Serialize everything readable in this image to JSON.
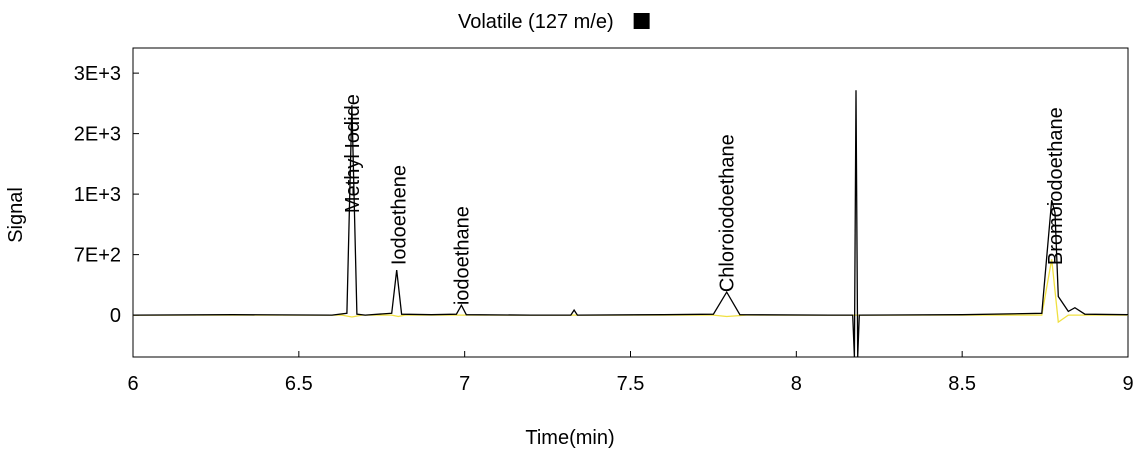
{
  "chart_data": {
    "type": "line",
    "xlabel": "Time(min)",
    "ylabel": "Signal",
    "xlim": [
      6,
      9
    ],
    "xticks": [
      6,
      6.5,
      7,
      7.5,
      8,
      8.5,
      9
    ],
    "ylim": [
      -450,
      2870
    ],
    "yticks": [
      0,
      {
        "value": 650,
        "label": "7E+2"
      },
      {
        "value": 1300,
        "label": "1E+3"
      },
      {
        "value": 1950,
        "label": "2E+3"
      },
      {
        "value": 2600,
        "label": "3E+3"
      }
    ],
    "series": [
      {
        "name": "Volatile (127 m/e)",
        "color": "#000000",
        "x": [
          6.0,
          6.3,
          6.6,
          6.645,
          6.66,
          6.675,
          6.7,
          6.78,
          6.795,
          6.81,
          6.9,
          6.975,
          6.99,
          7.005,
          7.2,
          7.32,
          7.33,
          7.34,
          7.6,
          7.75,
          7.79,
          7.83,
          8.1,
          8.17,
          8.175,
          8.18,
          8.185,
          8.19,
          8.5,
          8.74,
          8.77,
          8.78,
          8.79,
          8.82,
          8.84,
          8.87,
          9.0
        ],
        "values": [
          0,
          5,
          0,
          20,
          2256,
          10,
          0,
          20,
          484,
          10,
          5,
          10,
          107,
          5,
          0,
          0,
          54,
          0,
          5,
          10,
          247,
          5,
          0,
          0,
          -450,
          2417,
          -450,
          0,
          5,
          20,
          1235,
          1100,
          200,
          40,
          80,
          10,
          5
        ]
      },
      {
        "color": "#f0e040",
        "x": [
          6.0,
          6.63,
          6.66,
          6.69,
          6.78,
          6.8,
          6.82,
          7.75,
          7.79,
          7.85,
          8.74,
          8.77,
          8.79,
          8.82,
          9.0
        ],
        "values": [
          0,
          0,
          -20,
          0,
          0,
          -15,
          0,
          0,
          -15,
          0,
          0,
          600,
          -75,
          0,
          0
        ]
      }
    ],
    "annotations": [
      {
        "text": "Methyl Iodide",
        "x": 6.66,
        "y": 1096
      },
      {
        "text": "Iodoethene",
        "x": 6.8,
        "y": 537
      },
      {
        "text": "iodoethane",
        "x": 6.99,
        "y": 107
      },
      {
        "text": "Chloroiodoethane",
        "x": 7.79,
        "y": 247
      },
      {
        "text": "Bromoiodoethane",
        "x": 8.78,
        "y": 537
      }
    ]
  }
}
